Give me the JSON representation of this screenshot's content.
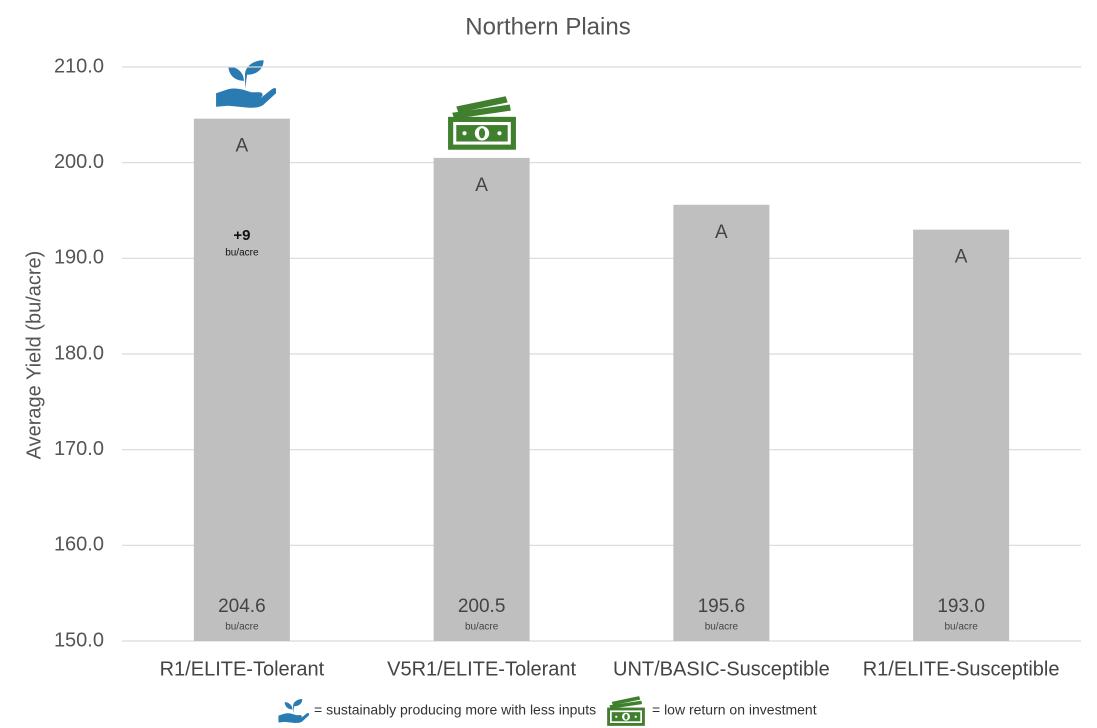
{
  "chart_data": {
    "type": "bar",
    "title": "Northern Plains",
    "y_label": "Average Yield (bu/acre)",
    "categories": [
      "R1/ELITE-Tolerant",
      "V5R1/ELITE-Tolerant",
      "UNT/BASIC-Susceptible",
      "R1/ELITE-Susceptible"
    ],
    "values": [
      204.6,
      200.5,
      195.6,
      193.0
    ],
    "value_labels": [
      "204.6",
      "200.5",
      "195.6",
      "193.0"
    ],
    "value_unit": "bu/acre",
    "letters": [
      "A",
      "A",
      "A",
      "A"
    ],
    "annotation": {
      "text": "+9",
      "unit": "bu/acre"
    },
    "color": "#bfbfbf",
    "ylim": [
      150,
      210
    ],
    "yticks": [
      {
        "value": 150,
        "label": "150.0"
      },
      {
        "value": 160,
        "label": "160.0"
      },
      {
        "value": 170,
        "label": "170.0"
      },
      {
        "value": 180,
        "label": "180.0"
      },
      {
        "value": 190,
        "label": "190.0"
      },
      {
        "value": 200,
        "label": "200.0"
      },
      {
        "value": 210,
        "label": "210.0"
      }
    ],
    "grid": true,
    "legend": [
      "= sustainably producing more with less inputs",
      "= low return on investment"
    ]
  }
}
